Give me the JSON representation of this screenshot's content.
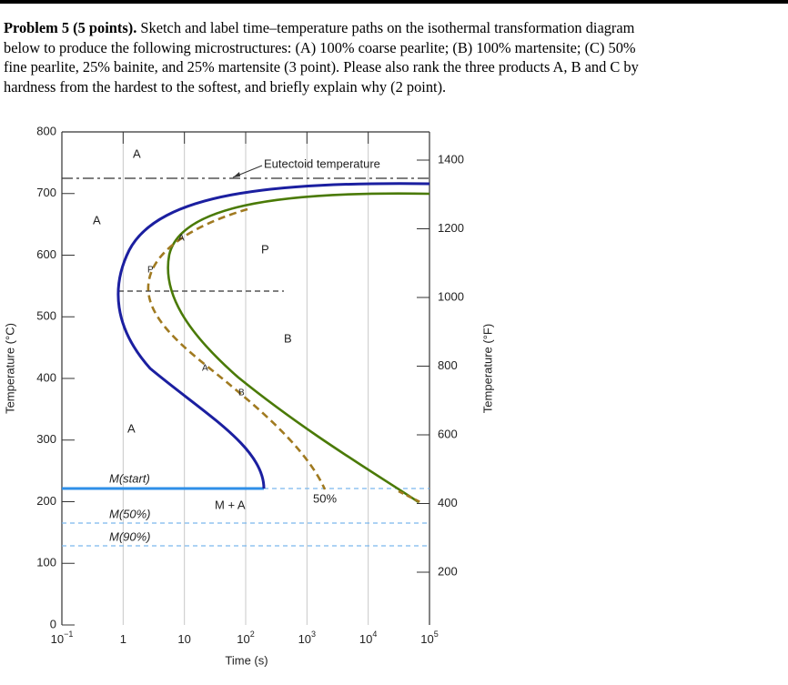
{
  "problem": {
    "heading": "Problem 5 (5 points).",
    "lines": [
      "Sketch and label time–temperature paths on the isothermal transformation diagram",
      "below to produce the following microstructures: (A) 100% coarse pearlite; (B) 100% martensite; (C) 50%",
      "fine pearlite, 25% bainite, and 25% martensite (3 point). Please also rank the three products A, B and C by",
      "hardness from the hardest to the softest, and briefly explain why (2 point)."
    ]
  },
  "diagram": {
    "y_axis_title": "Temperature (°C)",
    "y_ticks": [
      "800",
      "700",
      "600",
      "500",
      "400",
      "300",
      "200",
      "100",
      "0"
    ],
    "y2_axis_title": "Temperature (°F)",
    "y2_ticks": [
      "1400",
      "1200",
      "1000",
      "800",
      "600",
      "400",
      "200"
    ],
    "x_axis_title": "Time (s)",
    "x_ticks": [
      {
        "base": "10",
        "exp": "−1"
      },
      {
        "base": "1"
      },
      {
        "base": "10"
      },
      {
        "base": "10",
        "exp": "2"
      },
      {
        "base": "10",
        "exp": "3"
      },
      {
        "base": "10",
        "exp": "4"
      },
      {
        "base": "10",
        "exp": "5"
      }
    ],
    "labels": {
      "eutectoid": "Eutectoid temperature",
      "a_top": "A",
      "a_mid": "A",
      "a_low": "A",
      "p": "P",
      "b": "B",
      "m_start": "M(start)",
      "m_plus_a": "M + A",
      "m_50": "M(50%)",
      "m_90": "M(90%)",
      "pct_50": "50%",
      "path_a1": "A",
      "path_p": "P",
      "path_a2": "A",
      "path_b": "B"
    }
  }
}
